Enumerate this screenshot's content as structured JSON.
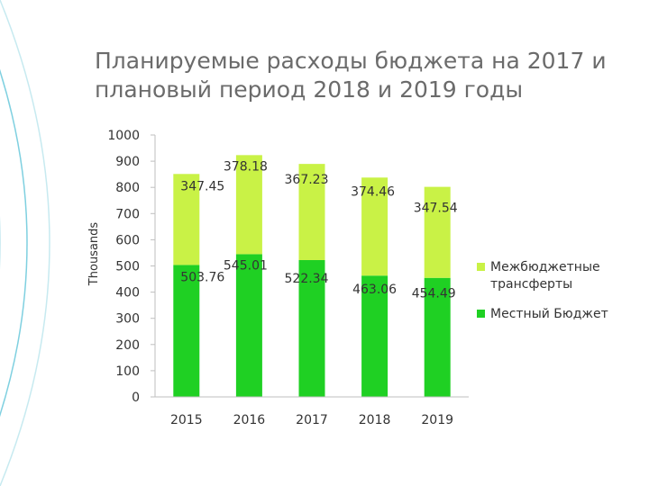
{
  "page": {
    "title": "Планируемые расходы бюджета на 2017 и плановый период 2018 и 2019 годы"
  },
  "chart_data": {
    "type": "bar",
    "stacked": true,
    "categories": [
      "2015",
      "2016",
      "2017",
      "2018",
      "2019"
    ],
    "series": [
      {
        "name": "Местный Бюджет",
        "color": "#1fd023",
        "values": [
          503.76,
          545.01,
          522.34,
          463.06,
          454.49
        ]
      },
      {
        "name": "Межбюджетные трансферты",
        "color": "#c9f246",
        "values": [
          347.45,
          378.18,
          367.23,
          374.46,
          347.54
        ]
      }
    ],
    "ylabel": "Thousands",
    "ylim": [
      0,
      1000
    ],
    "yticks": [
      0,
      100,
      200,
      300,
      400,
      500,
      600,
      700,
      800,
      900,
      1000
    ],
    "legend_position": "right",
    "grid": false
  }
}
